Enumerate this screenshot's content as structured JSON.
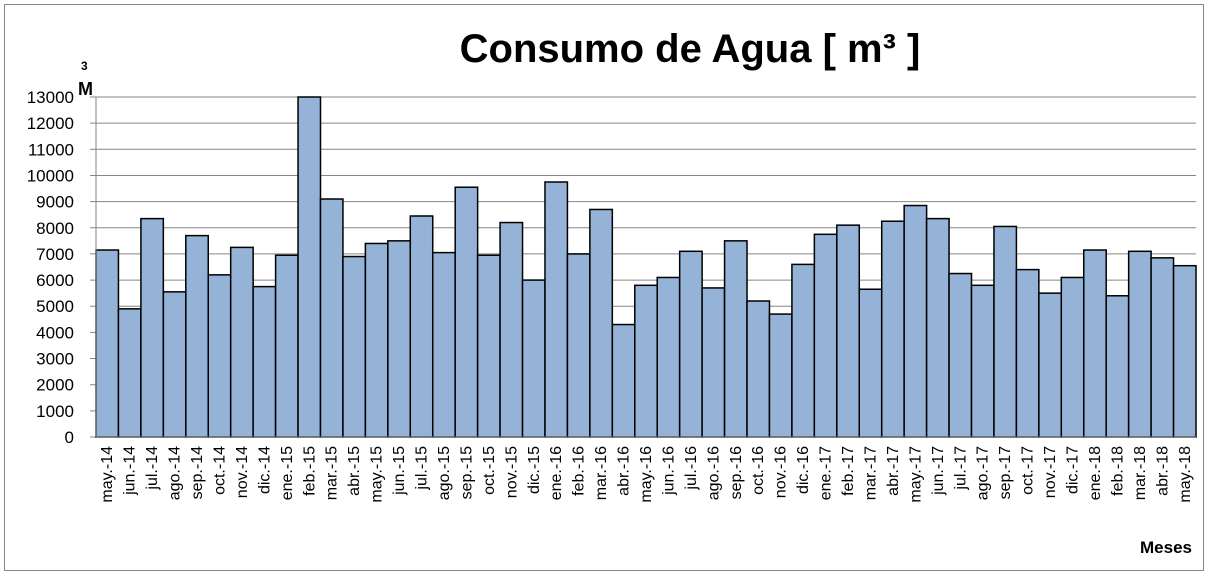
{
  "chart_data": {
    "type": "bar",
    "title": "Consumo de Agua [ m³ ]",
    "y_label": "M",
    "y_label_superscript": "3",
    "x_label": "Meses",
    "categories": [
      "may.-14",
      "jun.-14",
      "jul.-14",
      "ago.-14",
      "sep.-14",
      "oct.-14",
      "nov.-14",
      "dic.-14",
      "ene.-15",
      "feb.-15",
      "mar.-15",
      "abr.-15",
      "may.-15",
      "jun.-15",
      "jul.-15",
      "ago.-15",
      "sep.-15",
      "oct.-15",
      "nov.-15",
      "dic.-15",
      "ene.-16",
      "feb.-16",
      "mar.-16",
      "abr.-16",
      "may.-16",
      "jun.-16",
      "jul.-16",
      "ago.-16",
      "sep.-16",
      "oct.-16",
      "nov.-16",
      "dic.-16",
      "ene.-17",
      "feb.-17",
      "mar.-17",
      "abr.-17",
      "may.-17",
      "jun.-17",
      "jul.-17",
      "ago.-17",
      "sep.-17",
      "oct.-17",
      "nov.-17",
      "dic.-17",
      "ene.-18",
      "feb.-18",
      "mar.-18",
      "abr.-18",
      "may.-18"
    ],
    "values": [
      7150,
      4900,
      8350,
      5550,
      7700,
      6200,
      7250,
      5750,
      6950,
      13000,
      9100,
      6900,
      7400,
      7500,
      8450,
      7050,
      9550,
      6950,
      8200,
      6000,
      9750,
      7000,
      8700,
      4300,
      5800,
      6100,
      7100,
      5700,
      7500,
      5200,
      4700,
      6600,
      7750,
      8100,
      5650,
      8250,
      8850,
      8350,
      6250,
      5800,
      8050,
      6400,
      5500,
      6100,
      7150,
      5400,
      7100,
      6850,
      6550
    ],
    "color": "#95b3d7",
    "ylim": [
      0,
      13000
    ],
    "yticks": [
      0,
      1000,
      2000,
      3000,
      4000,
      5000,
      6000,
      7000,
      8000,
      9000,
      10000,
      11000,
      12000,
      13000
    ],
    "grid": true
  }
}
